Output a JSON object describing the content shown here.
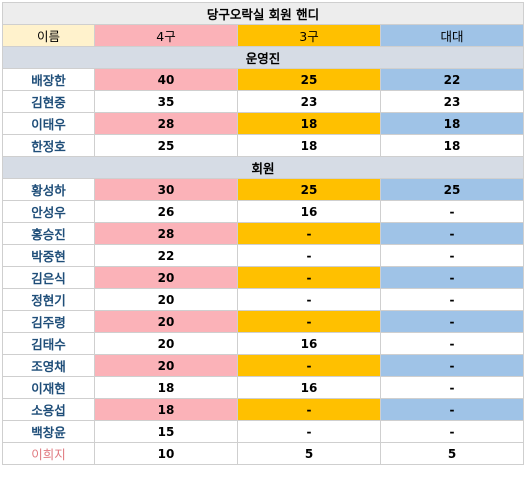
{
  "title": "당구오락실 회원 핸디",
  "headers": {
    "name": "이름",
    "col4": "4구",
    "col3": "3구",
    "daedae": "대대"
  },
  "sections": [
    {
      "label": "운영진",
      "rows": [
        {
          "name": "배장한",
          "v4": "40",
          "v3": "25",
          "vd": "22",
          "highlight": true
        },
        {
          "name": "김현중",
          "v4": "35",
          "v3": "23",
          "vd": "23",
          "highlight": false
        },
        {
          "name": "이태우",
          "v4": "28",
          "v3": "18",
          "vd": "18",
          "highlight": true
        },
        {
          "name": "한정호",
          "v4": "25",
          "v3": "18",
          "vd": "18",
          "highlight": false
        }
      ]
    },
    {
      "label": "회원",
      "rows": [
        {
          "name": "황성하",
          "v4": "30",
          "v3": "25",
          "vd": "25",
          "highlight": true
        },
        {
          "name": "안성우",
          "v4": "26",
          "v3": "16",
          "vd": "-",
          "highlight": false
        },
        {
          "name": "홍승진",
          "v4": "28",
          "v3": "-",
          "vd": "-",
          "highlight": true
        },
        {
          "name": "박중현",
          "v4": "22",
          "v3": "-",
          "vd": "-",
          "highlight": false
        },
        {
          "name": "김은식",
          "v4": "20",
          "v3": "-",
          "vd": "-",
          "highlight": true
        },
        {
          "name": "정현기",
          "v4": "20",
          "v3": "-",
          "vd": "-",
          "highlight": false
        },
        {
          "name": "김주령",
          "v4": "20",
          "v3": "-",
          "vd": "-",
          "highlight": true
        },
        {
          "name": "김태수",
          "v4": "20",
          "v3": "16",
          "vd": "-",
          "highlight": false
        },
        {
          "name": "조영채",
          "v4": "20",
          "v3": "-",
          "vd": "-",
          "highlight": true
        },
        {
          "name": "이재현",
          "v4": "18",
          "v3": "16",
          "vd": "-",
          "highlight": false
        },
        {
          "name": "소용섭",
          "v4": "18",
          "v3": "-",
          "vd": "-",
          "highlight": true
        },
        {
          "name": "백창윤",
          "v4": "15",
          "v3": "-",
          "vd": "-",
          "highlight": false
        },
        {
          "name": "이희지",
          "v4": "10",
          "v3": "5",
          "vd": "5",
          "highlight": false,
          "name_color": "pink"
        }
      ]
    }
  ],
  "colors": {
    "col4": "#fbb2b8",
    "col3": "#ffc000",
    "daedae": "#9fc3e7",
    "name_header": "#fff2cc",
    "section": "#d6dce5",
    "title": "#ededed",
    "name_text": "#1f4e79",
    "pink_name_text": "#e0797f"
  }
}
